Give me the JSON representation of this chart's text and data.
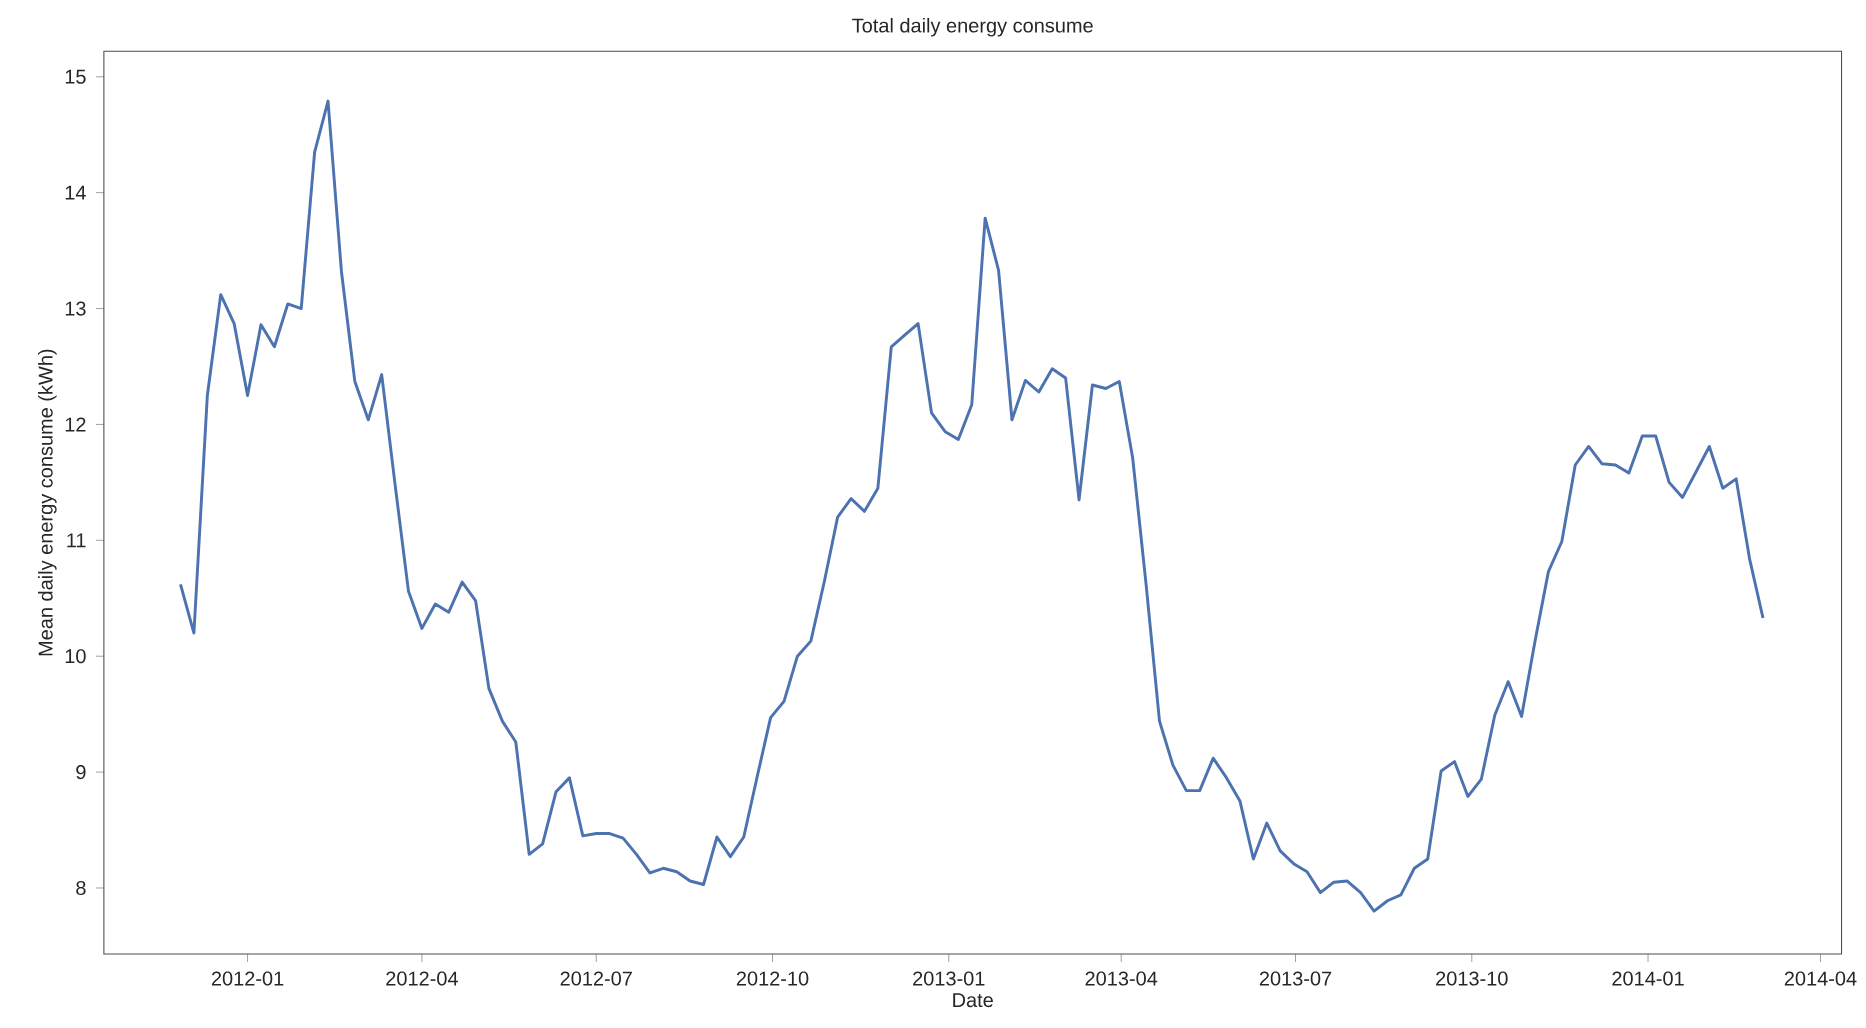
{
  "chart_data": {
    "type": "line",
    "title": "Total daily energy consume",
    "xlabel": "Date",
    "ylabel": "Mean daily energy consume (kWh)",
    "color": "#4c72b0",
    "x": [
      "2011-11-27",
      "2011-12-04",
      "2011-12-11",
      "2011-12-18",
      "2011-12-25",
      "2012-01-01",
      "2012-01-08",
      "2012-01-15",
      "2012-01-22",
      "2012-01-29",
      "2012-02-05",
      "2012-02-12",
      "2012-02-19",
      "2012-02-26",
      "2012-03-04",
      "2012-03-11",
      "2012-03-18",
      "2012-03-25",
      "2012-04-01",
      "2012-04-08",
      "2012-04-15",
      "2012-04-22",
      "2012-04-29",
      "2012-05-06",
      "2012-05-13",
      "2012-05-20",
      "2012-05-27",
      "2012-06-03",
      "2012-06-10",
      "2012-06-17",
      "2012-06-24",
      "2012-07-01",
      "2012-07-08",
      "2012-07-15",
      "2012-07-22",
      "2012-07-29",
      "2012-08-05",
      "2012-08-12",
      "2012-08-19",
      "2012-08-26",
      "2012-09-02",
      "2012-09-09",
      "2012-09-16",
      "2012-09-23",
      "2012-09-30",
      "2012-10-07",
      "2012-10-14",
      "2012-10-21",
      "2012-10-28",
      "2012-11-04",
      "2012-11-11",
      "2012-11-18",
      "2012-11-25",
      "2012-12-02",
      "2012-12-09",
      "2012-12-16",
      "2012-12-23",
      "2012-12-30",
      "2013-01-06",
      "2013-01-13",
      "2013-01-20",
      "2013-01-27",
      "2013-02-03",
      "2013-02-10",
      "2013-02-17",
      "2013-02-24",
      "2013-03-03",
      "2013-03-10",
      "2013-03-17",
      "2013-03-24",
      "2013-03-31",
      "2013-04-07",
      "2013-04-14",
      "2013-04-21",
      "2013-04-28",
      "2013-05-05",
      "2013-05-12",
      "2013-05-19",
      "2013-05-26",
      "2013-06-02",
      "2013-06-09",
      "2013-06-16",
      "2013-06-23",
      "2013-06-30",
      "2013-07-07",
      "2013-07-14",
      "2013-07-21",
      "2013-07-28",
      "2013-08-04",
      "2013-08-11",
      "2013-08-18",
      "2013-08-25",
      "2013-09-01",
      "2013-09-08",
      "2013-09-15",
      "2013-09-22",
      "2013-09-29",
      "2013-10-06",
      "2013-10-13",
      "2013-10-20",
      "2013-10-27",
      "2013-11-03",
      "2013-11-10",
      "2013-11-17",
      "2013-11-24",
      "2013-12-01",
      "2013-12-08",
      "2013-12-15",
      "2013-12-22",
      "2013-12-29",
      "2014-01-05",
      "2014-01-12",
      "2014-01-19",
      "2014-01-26",
      "2014-02-02",
      "2014-02-09",
      "2014-02-16",
      "2014-02-23",
      "2014-03-02"
    ],
    "values": [
      10.62,
      10.2,
      12.25,
      13.12,
      12.87,
      12.25,
      12.86,
      12.67,
      13.04,
      13.0,
      14.35,
      14.79,
      13.32,
      12.37,
      12.04,
      12.43,
      11.48,
      10.56,
      10.24,
      10.45,
      10.38,
      10.64,
      10.48,
      9.72,
      9.44,
      9.26,
      8.29,
      8.38,
      8.83,
      8.95,
      8.45,
      8.47,
      8.47,
      8.43,
      8.29,
      8.13,
      8.17,
      8.14,
      8.06,
      8.03,
      8.44,
      8.27,
      8.44,
      8.96,
      9.47,
      9.61,
      10.0,
      10.13,
      10.64,
      11.2,
      11.36,
      11.25,
      11.45,
      12.67,
      12.77,
      12.87,
      12.1,
      11.94,
      11.87,
      12.17,
      13.78,
      13.33,
      12.04,
      12.38,
      12.28,
      12.48,
      12.4,
      11.35,
      12.34,
      12.31,
      12.37,
      11.71,
      10.62,
      9.44,
      9.06,
      8.84,
      8.84,
      9.12,
      8.95,
      8.75,
      8.25,
      8.56,
      8.32,
      8.21,
      8.14,
      7.96,
      8.05,
      8.06,
      7.96,
      7.8,
      7.89,
      7.94,
      8.17,
      8.25,
      9.01,
      9.09,
      8.79,
      8.94,
      9.49,
      9.78,
      9.48,
      10.13,
      10.73,
      10.99,
      11.65,
      11.81,
      11.66,
      11.65,
      11.58,
      11.9,
      11.9,
      11.5,
      11.37,
      11.59,
      11.81,
      11.45,
      11.53,
      10.84,
      10.33
    ],
    "xlim": [
      "2011-10-18",
      "2014-04-12"
    ],
    "ylim": [
      7.43,
      15.22
    ],
    "xticks": [
      {
        "value": "2012-01-01",
        "label": "2012-01"
      },
      {
        "value": "2012-04-01",
        "label": "2012-04"
      },
      {
        "value": "2012-07-01",
        "label": "2012-07"
      },
      {
        "value": "2012-10-01",
        "label": "2012-10"
      },
      {
        "value": "2013-01-01",
        "label": "2013-01"
      },
      {
        "value": "2013-04-01",
        "label": "2013-04"
      },
      {
        "value": "2013-07-01",
        "label": "2013-07"
      },
      {
        "value": "2013-10-01",
        "label": "2013-10"
      },
      {
        "value": "2014-01-01",
        "label": "2014-01"
      },
      {
        "value": "2014-04-01",
        "label": "2014-04"
      }
    ],
    "yticks": [
      8,
      9,
      10,
      11,
      12,
      13,
      14,
      15
    ]
  }
}
